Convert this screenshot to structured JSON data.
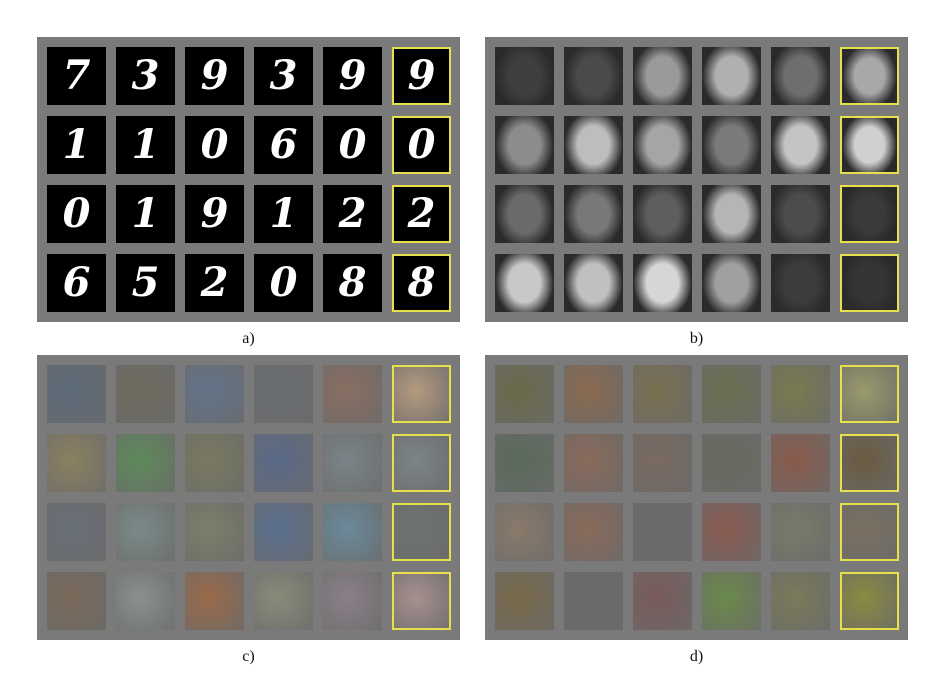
{
  "panels": [
    {
      "id": "a",
      "caption": "a)",
      "kind": "digits",
      "digits": [
        "7",
        "3",
        "9",
        "3",
        "9",
        "9",
        "1",
        "1",
        "0",
        "6",
        "0",
        "0",
        "0",
        "1",
        "9",
        "1",
        "2",
        "2",
        "6",
        "5",
        "2",
        "0",
        "8",
        "8"
      ]
    },
    {
      "id": "b",
      "caption": "b)",
      "kind": "faces",
      "colors": [
        "#3e3e3e",
        "#4a4a4a",
        "#9a9a9a",
        "#b0b0b0",
        "#6e6e6e",
        "#a8a8a8",
        "#8c8c8c",
        "#bdbdbd",
        "#a5a5a5",
        "#7a7a7a",
        "#c4c4c4",
        "#d0d0d0",
        "#6a6a6a",
        "#787878",
        "#5e5e5e",
        "#b5b5b5",
        "#4c4c4c",
        "#3a3a3a",
        "#c8c8c8",
        "#c0c0c0",
        "#d6d6d6",
        "#a0a0a0",
        "#3c3c3c",
        "#353535"
      ]
    },
    {
      "id": "c",
      "caption": "c)",
      "kind": "images",
      "colors": [
        "#5c6a7a",
        "#6f6a5e",
        "#62748a",
        "#6a6e72",
        "#8a6e62",
        "#b59a80",
        "#8a8060",
        "#5e8a5a",
        "#7a7a60",
        "#5a6a8a",
        "#7a8488",
        "#7c8488",
        "#6a7078",
        "#7a8a88",
        "#7a8068",
        "#5a7090",
        "#6a8a9a",
        "#6e7470",
        "#7a6a5a",
        "#8a9090",
        "#9a6a4a",
        "#8a8a7a",
        "#8a8088",
        "#a89090"
      ]
    },
    {
      "id": "d",
      "caption": "d)",
      "kind": "images",
      "colors": [
        "#6a6a4a",
        "#8a6a50",
        "#7a7050",
        "#6a7050",
        "#7a7a50",
        "#9a9a6a",
        "#5a6a5a",
        "#8a6a5a",
        "#7a6a60",
        "#6a6a60",
        "#8a5a4a",
        "#6a5a40",
        "#8a7a6a",
        "#8a6a5a",
        "#6a6a6a",
        "#8a5a50",
        "#7a7a6a",
        "#7a7060",
        "#7a6a4a",
        "#6a6a6a",
        "#7a5a5a",
        "#6a8a4a",
        "#7a7a5a",
        "#8a8a40"
      ]
    }
  ],
  "highlight_color": "#e8e04a"
}
